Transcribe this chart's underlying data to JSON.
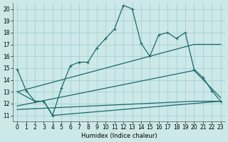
{
  "xlabel": "Humidex (Indice chaleur)",
  "xlim": [
    -0.5,
    23.5
  ],
  "ylim": [
    10.5,
    20.5
  ],
  "yticks": [
    11,
    12,
    13,
    14,
    15,
    16,
    17,
    18,
    19,
    20
  ],
  "xticks": [
    0,
    1,
    2,
    3,
    4,
    5,
    6,
    7,
    8,
    9,
    10,
    11,
    12,
    13,
    14,
    15,
    16,
    17,
    18,
    19,
    20,
    21,
    22,
    23
  ],
  "bg_color": "#cce8e8",
  "grid_color": "#a0cccc",
  "line_color": "#1a6b6b",
  "jagged_x": [
    0,
    1,
    2,
    3,
    4,
    5,
    6,
    7,
    8,
    9,
    10,
    11,
    12,
    13,
    14,
    15,
    16,
    17,
    18,
    19,
    20,
    21,
    22,
    23
  ],
  "jagged_y": [
    14.9,
    13.1,
    12.2,
    12.2,
    11.0,
    13.3,
    15.2,
    15.5,
    15.5,
    16.7,
    17.5,
    18.3,
    20.3,
    20.0,
    17.1,
    16.0,
    17.8,
    18.0,
    17.5,
    18.0,
    14.9,
    14.2,
    13.1,
    12.2
  ],
  "upper_line_x": [
    0,
    20,
    23
  ],
  "upper_line_y": [
    13.0,
    17.0,
    17.0
  ],
  "mid_line_x": [
    0,
    20,
    23
  ],
  "mid_line_y": [
    11.8,
    14.8,
    12.5
  ],
  "lower_line_x": [
    0,
    20,
    23
  ],
  "lower_line_y": [
    11.5,
    12.2,
    12.2
  ],
  "v_line_x": [
    0,
    2,
    3,
    4,
    23
  ],
  "v_line_y": [
    13.0,
    12.2,
    12.2,
    11.0,
    12.2
  ]
}
